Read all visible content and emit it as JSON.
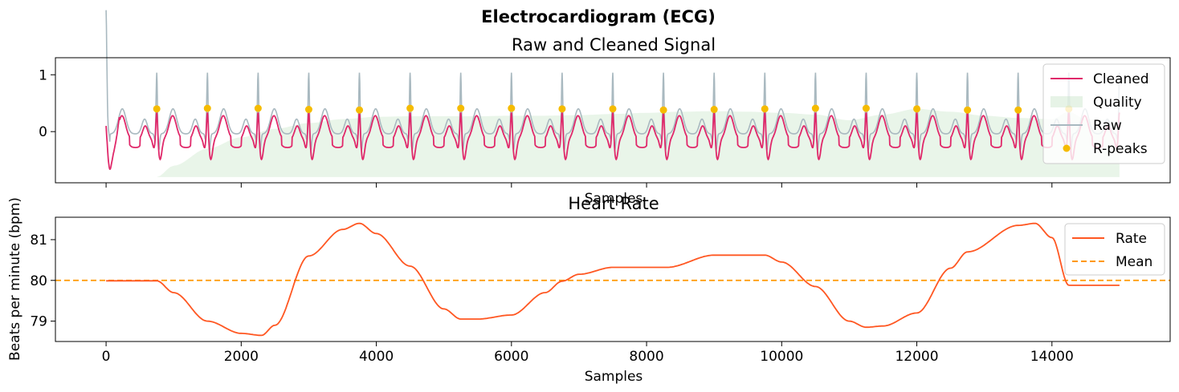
{
  "figure": {
    "title": "Electrocardiogram (ECG)"
  },
  "chart_data": [
    {
      "type": "line",
      "title": "Raw and Cleaned Signal",
      "xlabel": "Samples",
      "ylabel": "",
      "xlim": [
        -750,
        15750
      ],
      "ylim": [
        -0.9,
        1.3
      ],
      "xticks": [
        0,
        2000,
        4000,
        6000,
        8000,
        10000,
        12000,
        14000
      ],
      "yticks": [
        0,
        1
      ],
      "show_xtick_labels": false,
      "grid": false,
      "legend_placement": "top-right",
      "colors": {
        "cleaned": "#e0286a",
        "quality": "#b7deb7",
        "raw": "#a9b9c0",
        "rpeaks": "#f5bb00"
      },
      "legend": [
        "Cleaned",
        "Quality",
        "Raw",
        "R-peaks"
      ],
      "r_peaks": {
        "x": [
          750,
          1500,
          2250,
          3000,
          3750,
          4500,
          5250,
          6000,
          6750,
          7500,
          8250,
          9000,
          9750,
          10500,
          11250,
          12000,
          12750,
          13500,
          14250
        ],
        "y": [
          0.4,
          0.41,
          0.41,
          0.39,
          0.38,
          0.41,
          0.41,
          0.41,
          0.4,
          0.4,
          0.38,
          0.39,
          0.4,
          0.41,
          0.41,
          0.4,
          0.38,
          0.38,
          0.4
        ]
      },
      "quality": {
        "baseline": -0.8,
        "x": [
          750,
          1000,
          1500,
          2000,
          2500,
          3000,
          3500,
          4000,
          4500,
          5000,
          5500,
          6000,
          6500,
          7000,
          7500,
          8000,
          8500,
          9000,
          9500,
          10000,
          10500,
          11000,
          11500,
          12000,
          12500,
          13000,
          13500,
          14000,
          14250,
          14500,
          15000
        ],
        "y": [
          -0.8,
          -0.6,
          -0.3,
          -0.1,
          0.05,
          0.15,
          0.22,
          0.26,
          0.27,
          0.27,
          0.27,
          0.28,
          0.28,
          0.29,
          0.31,
          0.33,
          0.35,
          0.36,
          0.35,
          0.33,
          0.3,
          0.2,
          0.3,
          0.4,
          0.35,
          0.28,
          0.24,
          0.22,
          0.35,
          0.22,
          0.2
        ]
      },
      "start": {
        "raw_y": 1.1,
        "cleaned_y": 0.1,
        "cleaned_min": -0.8
      },
      "x_end": 15000
    },
    {
      "type": "line",
      "title": "Heart Rate",
      "xlabel": "Samples",
      "ylabel": "Beats per minute (bpm)",
      "xlim": [
        -750,
        15750
      ],
      "ylim": [
        78.5,
        81.55
      ],
      "xticks": [
        0,
        2000,
        4000,
        6000,
        8000,
        10000,
        12000,
        14000
      ],
      "yticks": [
        79,
        80,
        81
      ],
      "grid": false,
      "legend_placement": "top-right",
      "legend": [
        "Rate",
        "Mean"
      ],
      "colors": {
        "rate": "#ff5722",
        "mean": "#ff9800"
      },
      "mean": 80.0,
      "series": [
        {
          "name": "Rate",
          "x": [
            0,
            750,
            1000,
            1500,
            2000,
            2300,
            2500,
            3000,
            3500,
            3750,
            4000,
            4500,
            5000,
            5250,
            5500,
            6000,
            6500,
            6750,
            7000,
            7500,
            8000,
            8300,
            9000,
            9750,
            10000,
            10500,
            11000,
            11250,
            11500,
            12000,
            12500,
            12750,
            13500,
            13750,
            14000,
            14250,
            15000
          ],
          "y": [
            79.99,
            79.99,
            79.7,
            79.0,
            78.7,
            78.65,
            78.9,
            80.6,
            81.25,
            81.4,
            81.15,
            80.35,
            79.3,
            79.05,
            79.05,
            79.15,
            79.7,
            79.98,
            80.15,
            80.32,
            80.32,
            80.32,
            80.62,
            80.62,
            80.45,
            79.85,
            79.0,
            78.85,
            78.88,
            79.2,
            80.3,
            80.7,
            81.35,
            81.4,
            81.05,
            79.88,
            79.88
          ]
        }
      ]
    }
  ]
}
